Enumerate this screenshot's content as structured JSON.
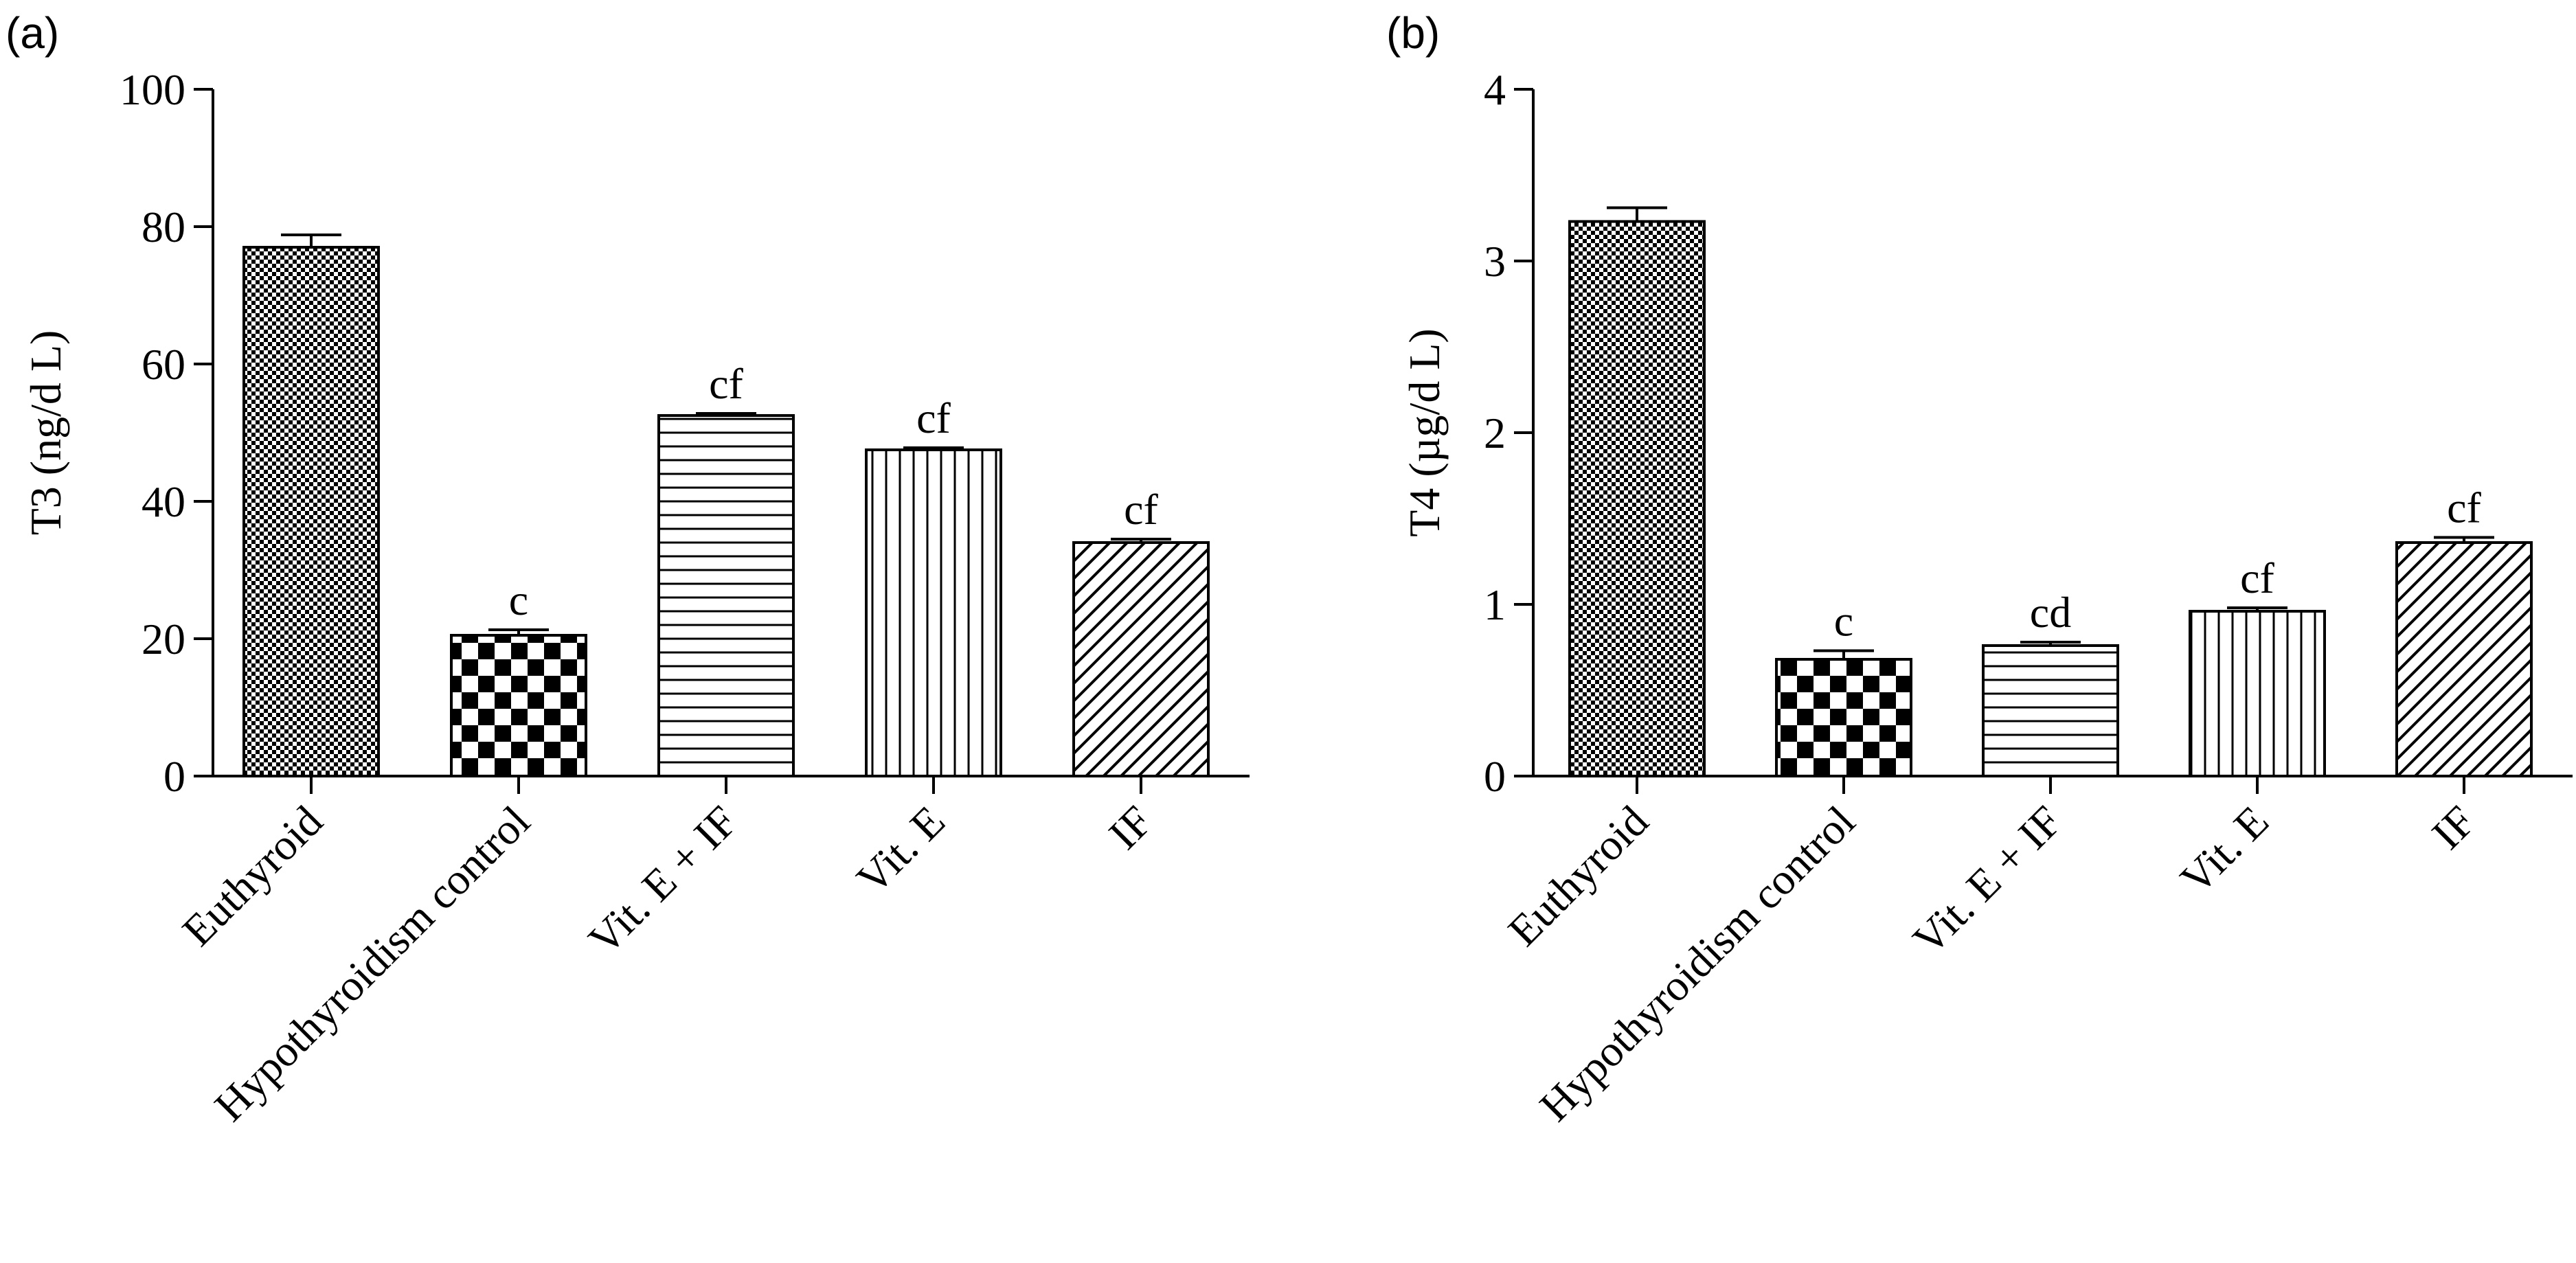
{
  "chart_data": [
    {
      "type": "bar",
      "panel_label": "(a)",
      "ylabel": "T3 (ng/d L)",
      "ylim": [
        0,
        100
      ],
      "yticks": [
        0,
        20,
        40,
        60,
        80,
        100
      ],
      "categories": [
        "Euthyroid",
        "Hypothyroidism control",
        "Vit. E + IF",
        "Vit. E",
        "IF"
      ],
      "values": [
        77,
        20.5,
        52.5,
        47.5,
        34
      ],
      "errors": [
        1.8,
        0.8,
        0.3,
        0.3,
        0.5
      ],
      "annotations": [
        "",
        "c",
        "cf",
        "cf",
        "cf"
      ],
      "patterns": [
        "fine-check",
        "checker",
        "horizontal",
        "vertical",
        "diagonal"
      ]
    },
    {
      "type": "bar",
      "panel_label": "(b)",
      "ylabel": "T4 (µg/d L)",
      "ylim": [
        0,
        4
      ],
      "yticks": [
        0,
        1,
        2,
        3,
        4
      ],
      "categories": [
        "Euthyroid",
        "Hypothyroidism control",
        "Vit. E + IF",
        "Vit. E",
        "IF"
      ],
      "values": [
        3.23,
        0.68,
        0.76,
        0.96,
        1.36
      ],
      "errors": [
        0.08,
        0.05,
        0.02,
        0.02,
        0.03
      ],
      "annotations": [
        "",
        "c",
        "cd",
        "cf",
        "cf"
      ],
      "patterns": [
        "fine-check",
        "checker",
        "horizontal",
        "vertical",
        "diagonal"
      ]
    }
  ]
}
